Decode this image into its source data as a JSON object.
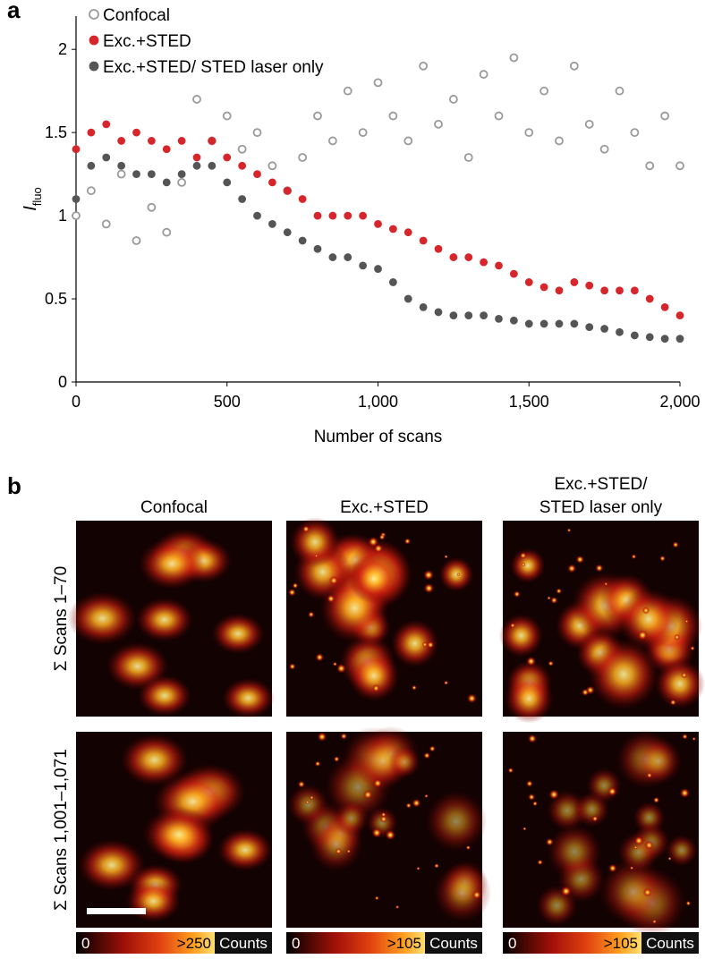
{
  "chart_data": {
    "type": "scatter",
    "xlabel": "Number of scans",
    "ylabel": "I",
    "ylabel_subscript": "fluo",
    "x": [
      0,
      50,
      100,
      150,
      200,
      250,
      300,
      350,
      400,
      450,
      500,
      550,
      600,
      650,
      700,
      750,
      800,
      850,
      900,
      950,
      1000,
      1050,
      1100,
      1150,
      1200,
      1250,
      1300,
      1350,
      1400,
      1450,
      1500,
      1550,
      1600,
      1650,
      1700,
      1750,
      1800,
      1850,
      1900,
      1950,
      2000
    ],
    "series": [
      {
        "name": "Confocal",
        "color": "#9a9a9a",
        "filled": false,
        "values": [
          1.0,
          1.15,
          0.95,
          1.25,
          0.85,
          1.05,
          0.9,
          1.2,
          1.7,
          1.45,
          1.6,
          1.4,
          1.5,
          1.3,
          1.15,
          1.35,
          1.6,
          1.45,
          1.75,
          1.5,
          1.8,
          1.6,
          1.45,
          1.9,
          1.55,
          1.7,
          1.35,
          1.85,
          1.6,
          1.95,
          1.5,
          1.75,
          1.45,
          1.9,
          1.55,
          1.4,
          1.75,
          1.5,
          1.3,
          1.6,
          1.3
        ]
      },
      {
        "name": "Exc.+STED",
        "color": "#d7262b",
        "filled": true,
        "values": [
          1.4,
          1.5,
          1.55,
          1.45,
          1.5,
          1.45,
          1.4,
          1.45,
          1.35,
          1.45,
          1.35,
          1.3,
          1.25,
          1.2,
          1.15,
          1.1,
          1.0,
          1.0,
          1.0,
          1.0,
          0.95,
          0.92,
          0.9,
          0.85,
          0.8,
          0.75,
          0.75,
          0.72,
          0.7,
          0.65,
          0.6,
          0.57,
          0.55,
          0.6,
          0.58,
          0.55,
          0.55,
          0.55,
          0.5,
          0.45,
          0.4
        ]
      },
      {
        "name": "Exc.+STED/ STED laser only",
        "color": "#555555",
        "filled": true,
        "values": [
          1.1,
          1.3,
          1.35,
          1.3,
          1.25,
          1.25,
          1.2,
          1.25,
          1.3,
          1.3,
          1.2,
          1.1,
          1.0,
          0.95,
          0.9,
          0.85,
          0.8,
          0.75,
          0.75,
          0.7,
          0.68,
          0.6,
          0.5,
          0.45,
          0.42,
          0.4,
          0.4,
          0.4,
          0.38,
          0.37,
          0.35,
          0.35,
          0.35,
          0.35,
          0.33,
          0.32,
          0.3,
          0.28,
          0.27,
          0.26,
          0.26
        ]
      }
    ],
    "xlim": [
      0,
      2000
    ],
    "xticks": [
      0,
      500,
      {
        "value": 1000,
        "label": "1,000"
      },
      {
        "value": 1500,
        "label": "1,500"
      },
      {
        "value": 2000,
        "label": "2,000"
      }
    ],
    "ylim": [
      0,
      2.2
    ],
    "yticks": [
      0,
      0.5,
      1,
      1.5,
      2
    ],
    "legend": "top-left"
  },
  "panel_labels": [
    "a",
    "b"
  ],
  "panel_b": {
    "columns": [
      [
        "Confocal"
      ],
      [
        "Exc.+STED"
      ],
      [
        "Exc.+STED/",
        "STED laser only"
      ]
    ],
    "rows": [
      "Σ Scans 1–70",
      "Σ Scans 1,001–1,071"
    ],
    "colorbars": [
      {
        "min": "0",
        "max": ">250",
        "unit": "Counts"
      },
      {
        "min": "0",
        "max": ">105",
        "unit": "Counts"
      },
      {
        "min": "0",
        "max": ">105",
        "unit": "Counts"
      }
    ]
  }
}
